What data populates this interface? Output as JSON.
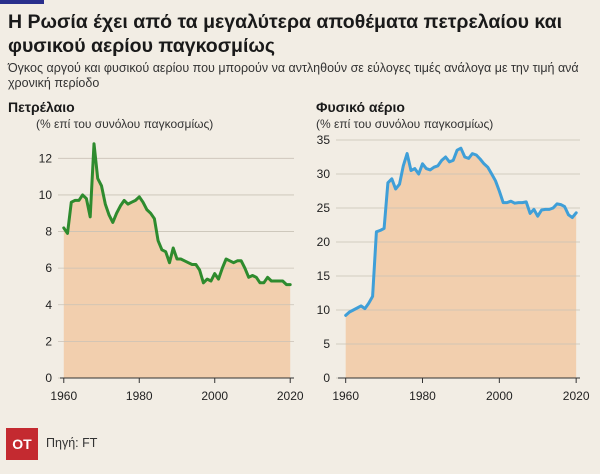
{
  "header": {
    "title": "Η Ρωσία έχει από τα μεγαλύτερα αποθέματα πετρελαίου και φυσικού αερίου παγκοσμίως",
    "subtitle": "Όγκος αργού και φυσικού αερίου που μπορούν να αντληθούν σε εύλογες τιμές ανάλογα με την τιμή ανά χρονική περίοδο"
  },
  "footer": {
    "logo": "ΟΤ",
    "source": "Πηγή: FT"
  },
  "colors": {
    "background": "#f2ede4",
    "oil_line": "#2e8b2e",
    "gas_line": "#3f9fd8",
    "area_fill": "#f2cfae"
  },
  "chart_data": [
    {
      "type": "area",
      "title": "Πετρέλαιο",
      "ylabel": "(% επί του συνόλου παγκοσμίως)",
      "xlabel": "",
      "xlim": [
        1959,
        2021
      ],
      "ylim": [
        0,
        13
      ],
      "yticks": [
        0,
        2,
        4,
        6,
        8,
        10,
        12
      ],
      "xticks": [
        1960,
        1980,
        2000,
        2020
      ],
      "grid": true,
      "series": [
        {
          "x": [
            1960,
            1961,
            1962,
            1963,
            1964,
            1965,
            1966,
            1967,
            1968,
            1969,
            1970,
            1971,
            1972,
            1973,
            1974,
            1975,
            1976,
            1977,
            1978,
            1979,
            1980,
            1981,
            1982,
            1983,
            1984,
            1985,
            1986,
            1987,
            1988,
            1989,
            1990,
            1991,
            1992,
            1993,
            1994,
            1995,
            1996,
            1997,
            1998,
            1999,
            2000,
            2001,
            2002,
            2003,
            2004,
            2005,
            2006,
            2007,
            2008,
            2009,
            2010,
            2011,
            2012,
            2013,
            2014,
            2015,
            2016,
            2017,
            2018,
            2019,
            2020
          ],
          "y": [
            8.2,
            7.9,
            9.6,
            9.7,
            9.7,
            10.0,
            9.8,
            8.8,
            12.8,
            10.9,
            10.5,
            9.5,
            8.9,
            8.5,
            9.0,
            9.4,
            9.7,
            9.5,
            9.6,
            9.7,
            9.9,
            9.6,
            9.2,
            9.0,
            8.7,
            7.5,
            7.0,
            6.9,
            6.3,
            7.1,
            6.5,
            6.5,
            6.4,
            6.3,
            6.2,
            6.2,
            5.9,
            5.2,
            5.4,
            5.3,
            5.7,
            5.4,
            6.0,
            6.5,
            6.4,
            6.3,
            6.4,
            6.4,
            6.0,
            5.5,
            5.6,
            5.5,
            5.2,
            5.2,
            5.5,
            5.3,
            5.3,
            5.3,
            5.3,
            5.1,
            5.1
          ]
        }
      ]
    },
    {
      "type": "area",
      "title": "Φυσικό αέριο",
      "ylabel": "(% επί του συνόλου παγκοσμίως)",
      "xlabel": "",
      "xlim": [
        1958,
        2021
      ],
      "ylim": [
        0,
        35
      ],
      "yticks": [
        0,
        5,
        10,
        15,
        20,
        25,
        30,
        35
      ],
      "xticks": [
        1960,
        1980,
        2000,
        2020
      ],
      "grid": true,
      "series": [
        {
          "x": [
            1960,
            1961,
            1962,
            1963,
            1964,
            1965,
            1966,
            1967,
            1968,
            1969,
            1970,
            1971,
            1972,
            1973,
            1974,
            1975,
            1976,
            1977,
            1978,
            1979,
            1980,
            1981,
            1982,
            1983,
            1984,
            1985,
            1986,
            1987,
            1988,
            1989,
            1990,
            1991,
            1992,
            1993,
            1994,
            1995,
            1996,
            1997,
            1998,
            1999,
            2000,
            2001,
            2002,
            2003,
            2004,
            2005,
            2006,
            2007,
            2008,
            2009,
            2010,
            2011,
            2012,
            2013,
            2014,
            2015,
            2016,
            2017,
            2018,
            2019,
            2020
          ],
          "y": [
            9.2,
            9.7,
            10.0,
            10.3,
            10.6,
            10.2,
            11.0,
            12.0,
            21.5,
            21.7,
            22.0,
            28.7,
            29.3,
            27.8,
            28.5,
            31.2,
            33.0,
            30.5,
            30.8,
            30.0,
            31.5,
            30.8,
            30.6,
            31.0,
            31.2,
            32.0,
            32.5,
            31.8,
            32.0,
            33.5,
            33.8,
            32.5,
            32.3,
            33.0,
            32.8,
            32.2,
            31.5,
            31.0,
            30.0,
            29.0,
            27.5,
            25.8,
            25.8,
            26.0,
            25.7,
            25.8,
            25.8,
            25.9,
            24.2,
            24.8,
            23.8,
            24.7,
            24.8,
            24.8,
            25.0,
            25.6,
            25.5,
            25.2,
            24.0,
            23.6,
            24.3
          ]
        }
      ]
    }
  ]
}
